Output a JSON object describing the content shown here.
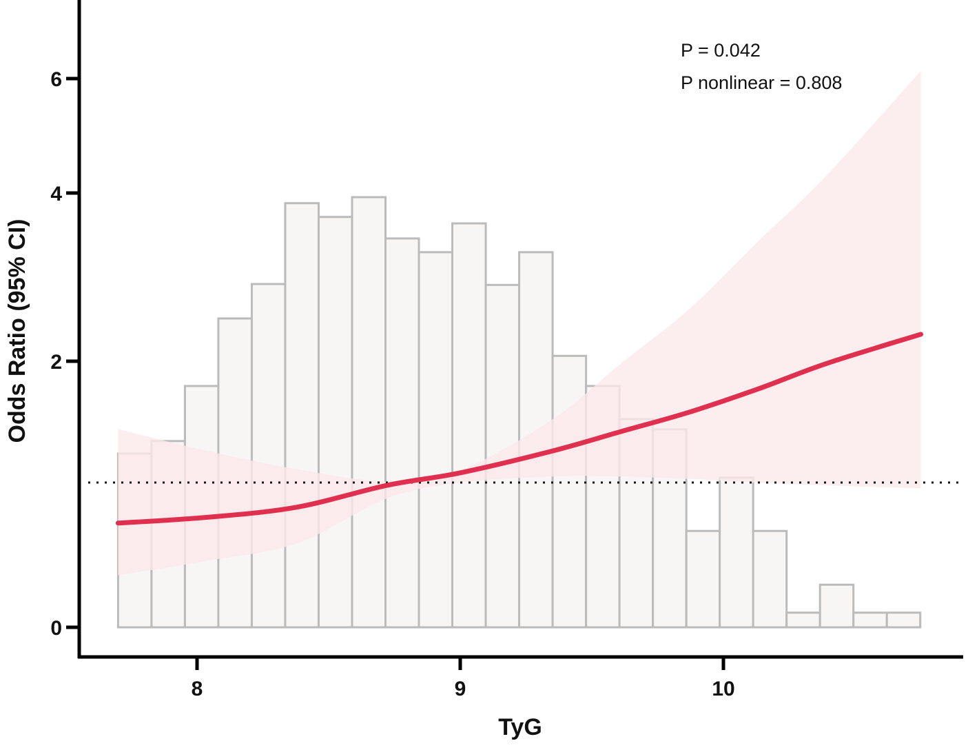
{
  "chart_data": {
    "type": "line",
    "subtype": "restricted cubic spline with 95% CI band over histogram",
    "title": "",
    "xlabel": "TyG",
    "ylabel": "Odds Ratio (95% CI)",
    "xlim": [
      7.7,
      10.75
    ],
    "ylim": [
      0,
      7
    ],
    "x_ticks": [
      8,
      9,
      10
    ],
    "y_ticks": [
      0,
      2,
      4,
      6
    ],
    "y_scale_note": "non-linear y axis (tick spacing compressed toward top)",
    "reference_line": {
      "y": 1,
      "style": "dotted",
      "color": "#111111"
    },
    "annotations": [
      {
        "text": "P = 0.042"
      },
      {
        "text": "P nonlinear = 0.808"
      }
    ],
    "grid": false,
    "legend": null,
    "series": [
      {
        "name": "Odds Ratio",
        "color": "#E0304F",
        "x": [
          7.7,
          8.04,
          8.38,
          8.72,
          9.0,
          9.35,
          9.61,
          9.87,
          10.13,
          10.39,
          10.75
        ],
        "values": [
          0.72,
          0.76,
          0.83,
          0.98,
          1.08,
          1.26,
          1.42,
          1.58,
          1.77,
          1.98,
          2.32
        ]
      },
      {
        "name": "95% CI upper",
        "color": "#FBE8EA",
        "x": [
          7.7,
          8.04,
          8.38,
          8.72,
          9.0,
          9.35,
          9.61,
          9.87,
          10.13,
          10.39,
          10.75
        ],
        "values": [
          1.44,
          1.26,
          1.11,
          1.01,
          1.1,
          1.52,
          1.98,
          2.62,
          3.42,
          4.3,
          6.15
        ]
      },
      {
        "name": "95% CI lower",
        "color": "#FBE8EA",
        "x": [
          7.7,
          8.04,
          8.38,
          8.72,
          9.0,
          9.35,
          9.61,
          9.87,
          10.13,
          10.39,
          10.75
        ],
        "values": [
          0.36,
          0.46,
          0.58,
          0.89,
          1.0,
          1.05,
          1.05,
          1.03,
          1.0,
          0.98,
          0.96
        ]
      }
    ],
    "histogram": {
      "bin_start": 7.7,
      "bin_width": 0.127,
      "fill": "#F7F6F5",
      "stroke": "#BBBBBB",
      "relative_heights": [
        0.404,
        0.433,
        0.561,
        0.718,
        0.798,
        0.986,
        0.954,
        1.0,
        0.904,
        0.872,
        0.939,
        0.796,
        0.872,
        0.631,
        0.561,
        0.484,
        0.46,
        0.224,
        0.348,
        0.224,
        0.034,
        0.099,
        0.034,
        0.034
      ]
    }
  },
  "colors": {
    "curve": "#E0304F",
    "ci_band": "#FBE8EA",
    "bar_fill": "#F7F6F5",
    "bar_stroke": "#BBBBBB",
    "axis": "#000000"
  }
}
